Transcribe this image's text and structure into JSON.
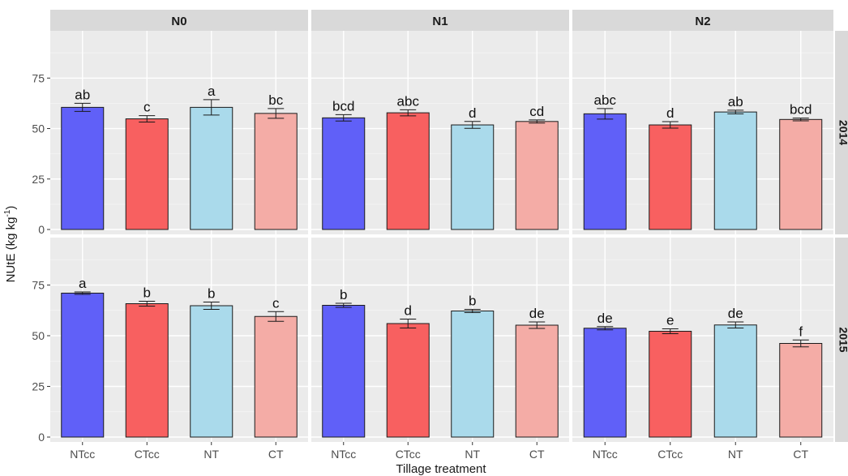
{
  "chart_data": {
    "type": "bar",
    "title": "",
    "xlabel": "Tillage treatment",
    "ylabel": "NUtE (kg kg",
    "ylabel_sup": "-1",
    "ylabel_close": ")",
    "ylim": [
      0,
      96
    ],
    "yticks": [
      0,
      25,
      50,
      75
    ],
    "grid": true,
    "legend": "none",
    "facet_columns": [
      "N0",
      "N1",
      "N2"
    ],
    "facet_rows": [
      "2014",
      "2015"
    ],
    "categories": [
      "NTcc",
      "CTcc",
      "NT",
      "CT"
    ],
    "colors": {
      "NTcc": "#6060f8",
      "CTcc": "#f86060",
      "NT": "#aadaeb",
      "CT": "#f4aca6"
    },
    "panels": [
      {
        "row": "2014",
        "column": "N0",
        "values": [
          60.5,
          54.8,
          60.5,
          57.5
        ],
        "errors": [
          2.0,
          1.6,
          3.8,
          2.4
        ],
        "letters": [
          "ab",
          "c",
          "a",
          "bc"
        ]
      },
      {
        "row": "2014",
        "column": "N1",
        "values": [
          55.3,
          57.8,
          51.8,
          53.5
        ],
        "errors": [
          1.6,
          1.5,
          1.7,
          0.8
        ],
        "letters": [
          "bcd",
          "abc",
          "d",
          "cd"
        ]
      },
      {
        "row": "2014",
        "column": "N2",
        "values": [
          57.3,
          51.8,
          58.2,
          54.5
        ],
        "errors": [
          2.6,
          1.6,
          0.9,
          0.7
        ],
        "letters": [
          "abc",
          "d",
          "ab",
          "bcd"
        ]
      },
      {
        "row": "2015",
        "column": "N0",
        "values": [
          71.0,
          65.8,
          64.8,
          59.5
        ],
        "errors": [
          0.6,
          1.2,
          1.8,
          2.4
        ],
        "letters": [
          "a",
          "b",
          "b",
          "c"
        ]
      },
      {
        "row": "2015",
        "column": "N1",
        "values": [
          65.0,
          56.0,
          62.2,
          55.2
        ],
        "errors": [
          1.0,
          2.2,
          0.8,
          1.6
        ],
        "letters": [
          "b",
          "d",
          "b",
          "de"
        ]
      },
      {
        "row": "2015",
        "column": "N2",
        "values": [
          53.7,
          52.2,
          55.3,
          46.2
        ],
        "errors": [
          0.8,
          1.2,
          1.5,
          1.7
        ],
        "letters": [
          "de",
          "e",
          "de",
          "f"
        ]
      }
    ]
  }
}
